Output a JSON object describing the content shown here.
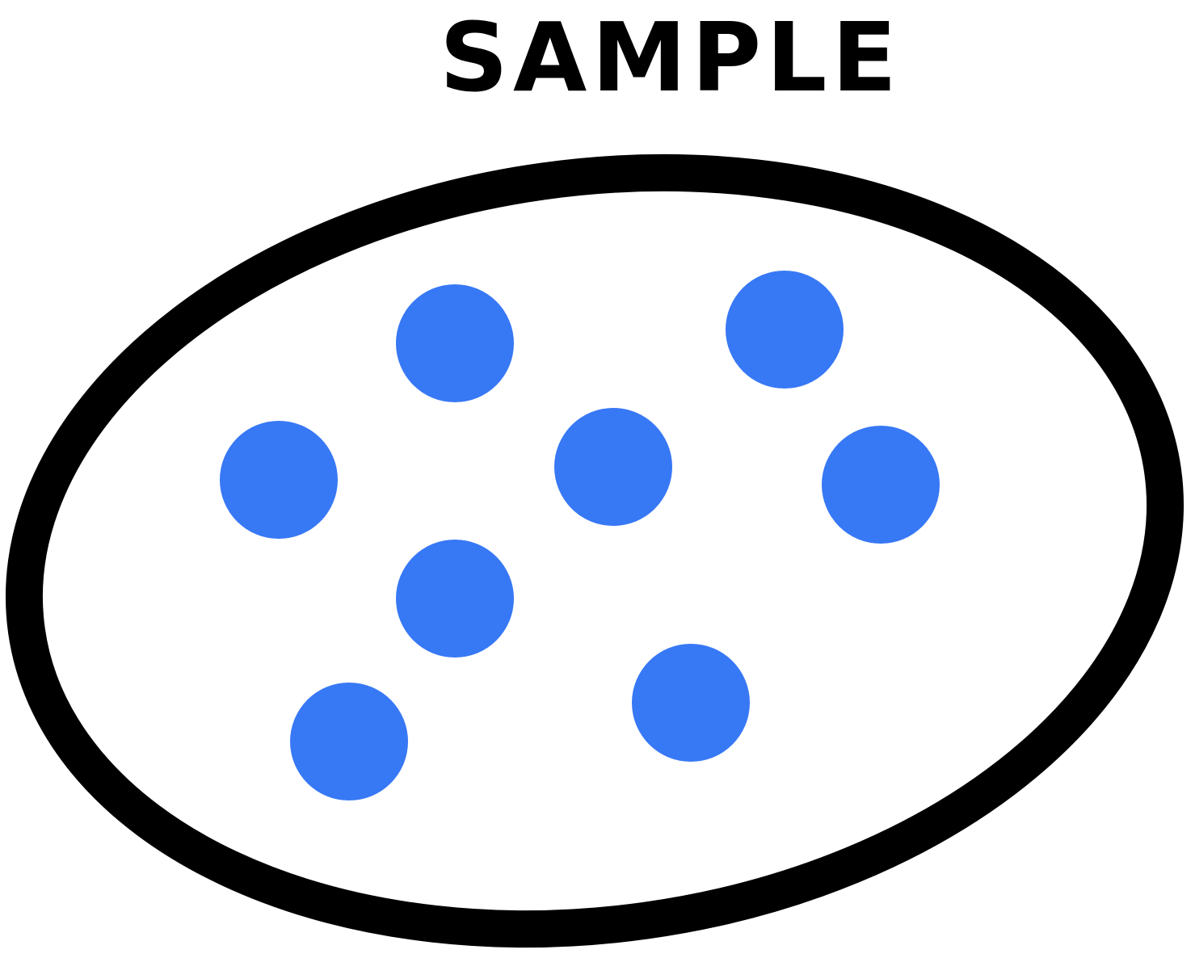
{
  "diagram": {
    "title": "SAMPLE",
    "colors": {
      "background": "#ffffff",
      "outline": "#000000",
      "dot": "#3778f5"
    },
    "outline_shape": "tilted-ellipse",
    "dot_count": 8
  }
}
